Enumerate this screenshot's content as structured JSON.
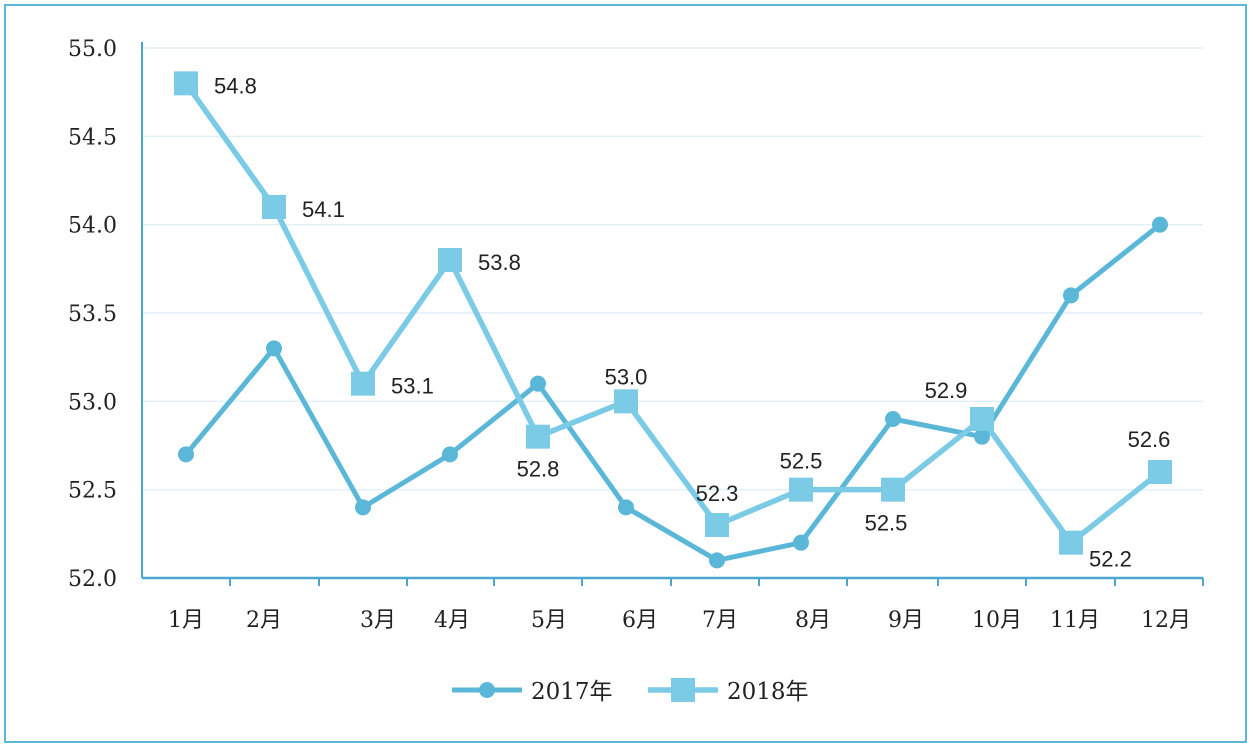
{
  "chart_data": {
    "type": "line",
    "categories": [
      "1月",
      "2月",
      "3月",
      "4月",
      "5月",
      "6月",
      "7月",
      "8月",
      "9月",
      "10月",
      "11月",
      "12月"
    ],
    "ylim": [
      52.0,
      55.0
    ],
    "yticks": [
      "52.0",
      "52.5",
      "53.0",
      "53.5",
      "54.0",
      "54.5",
      "55.0"
    ],
    "grid": true,
    "legend_position": "bottom",
    "series": [
      {
        "name": "2017年",
        "marker": "circle",
        "color": "#5bb7d8",
        "values": [
          52.7,
          53.3,
          52.4,
          52.7,
          53.1,
          52.4,
          52.1,
          52.2,
          52.9,
          52.8,
          53.6,
          54.0
        ]
      },
      {
        "name": "2018年",
        "marker": "square",
        "color": "#7ccbe6",
        "values": [
          54.8,
          54.1,
          53.1,
          53.8,
          52.8,
          53.0,
          52.3,
          52.5,
          52.5,
          52.9,
          52.2,
          52.6
        ],
        "data_labels": [
          "54.8",
          "54.1",
          "53.1",
          "53.8",
          "52.8",
          "53.0",
          "52.3",
          "52.5",
          "52.5",
          "52.9",
          "52.2",
          "52.6"
        ]
      }
    ]
  }
}
